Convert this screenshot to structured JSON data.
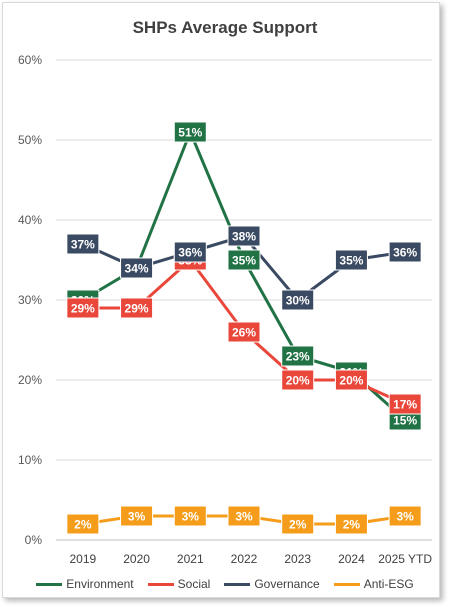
{
  "chart_data": {
    "type": "line",
    "title": "SHPs Average Support",
    "xlabel": "",
    "ylabel": "",
    "categories": [
      "2019",
      "2020",
      "2021",
      "2022",
      "2023",
      "2024",
      "2025 YTD"
    ],
    "ylim": [
      0,
      60
    ],
    "yticks": [
      "0%",
      "10%",
      "20%",
      "30%",
      "40%",
      "50%",
      "60%"
    ],
    "grid": true,
    "legend_position": "bottom",
    "series": [
      {
        "name": "Environment",
        "color": "#217346",
        "values": [
          30,
          34,
          51,
          35,
          23,
          21,
          15
        ],
        "labels": [
          "30%",
          "34%",
          "51%",
          "35%",
          "23%",
          "21%",
          "15%"
        ]
      },
      {
        "name": "Social",
        "color": "#e8473a",
        "values": [
          29,
          29,
          35,
          26,
          20,
          20,
          17
        ],
        "labels": [
          "29%",
          "29%",
          "35%",
          "26%",
          "20%",
          "20%",
          "17%"
        ]
      },
      {
        "name": "Governance",
        "color": "#3b4a63",
        "values": [
          37,
          34,
          36,
          38,
          30,
          35,
          36
        ],
        "labels": [
          "37%",
          "34%",
          "36%",
          "38%",
          "30%",
          "35%",
          "36%"
        ]
      },
      {
        "name": "Anti-ESG",
        "color": "#f59c1a",
        "values": [
          2,
          3,
          3,
          3,
          2,
          2,
          3
        ],
        "labels": [
          "2%",
          "3%",
          "3%",
          "3%",
          "2%",
          "2%",
          "3%"
        ]
      }
    ]
  }
}
